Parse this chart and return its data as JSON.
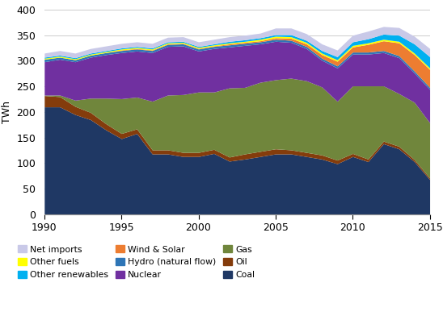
{
  "years": [
    1990,
    1991,
    1992,
    1993,
    1994,
    1995,
    1996,
    1997,
    1998,
    1999,
    2000,
    2001,
    2002,
    2003,
    2004,
    2005,
    2006,
    2007,
    2008,
    2009,
    2010,
    2011,
    2012,
    2013,
    2014,
    2015
  ],
  "Coal": [
    210,
    210,
    195,
    185,
    165,
    148,
    158,
    118,
    118,
    113,
    113,
    119,
    104,
    108,
    113,
    118,
    118,
    113,
    108,
    99,
    113,
    103,
    138,
    128,
    103,
    68
  ],
  "Oil": [
    22,
    20,
    16,
    14,
    12,
    10,
    9,
    8,
    8,
    8,
    8,
    8,
    8,
    10,
    10,
    10,
    8,
    8,
    8,
    7,
    6,
    5,
    5,
    5,
    4,
    3
  ],
  "Gas": [
    1,
    3,
    12,
    28,
    50,
    68,
    62,
    95,
    107,
    113,
    118,
    112,
    135,
    130,
    135,
    135,
    140,
    140,
    133,
    115,
    132,
    143,
    108,
    103,
    112,
    108
  ],
  "Nuclear": [
    65,
    70,
    75,
    80,
    85,
    90,
    90,
    95,
    95,
    95,
    80,
    85,
    80,
    82,
    75,
    75,
    70,
    63,
    52,
    65,
    62,
    62,
    65,
    70,
    57,
    65
  ],
  "Hydro": [
    5,
    4,
    4,
    4,
    4,
    4,
    4,
    4,
    4,
    4,
    4,
    4,
    4,
    4,
    4,
    4,
    4,
    4,
    4,
    4,
    4,
    4,
    4,
    4,
    4,
    4
  ],
  "Wind_Solar": [
    0,
    0,
    0,
    0,
    0,
    1,
    1,
    1,
    1,
    1,
    1,
    1,
    2,
    2,
    2,
    3,
    4,
    5,
    7,
    9,
    10,
    15,
    19,
    25,
    32,
    35
  ],
  "Other_fuels": [
    2,
    2,
    2,
    2,
    2,
    2,
    2,
    2,
    2,
    2,
    2,
    2,
    2,
    2,
    3,
    3,
    3,
    3,
    3,
    3,
    3,
    3,
    3,
    3,
    3,
    3
  ],
  "Other_renewables": [
    2,
    2,
    2,
    2,
    2,
    2,
    2,
    2,
    2,
    2,
    2,
    2,
    3,
    3,
    3,
    3,
    4,
    4,
    5,
    6,
    7,
    8,
    10,
    12,
    18,
    22
  ],
  "Net_imports": [
    8,
    9,
    9,
    9,
    9,
    9,
    9,
    9,
    9,
    9,
    9,
    9,
    9,
    9,
    9,
    13,
    13,
    13,
    13,
    13,
    13,
    15,
    15,
    15,
    15,
    16
  ],
  "colors": {
    "Coal": "#1f3864",
    "Oil": "#843c0c",
    "Gas": "#70863c",
    "Nuclear": "#7030a0",
    "Hydro": "#2e75b6",
    "Wind_Solar": "#ed7d31",
    "Other_fuels": "#ffff00",
    "Other_renewables": "#00b0f0",
    "Net_imports": "#c9c9e8"
  },
  "legend_labels": {
    "Net_imports": "Net imports",
    "Other_fuels": "Other fuels",
    "Other_renewables": "Other renewables",
    "Wind_Solar": "Wind & Solar",
    "Hydro": "Hydro (natural flow)",
    "Nuclear": "Nuclear",
    "Gas": "Gas",
    "Oil": "Oil",
    "Coal": "Coal"
  },
  "ylabel": "TWh",
  "ylim": [
    0,
    400
  ],
  "xlim": [
    1990,
    2015
  ],
  "yticks": [
    0,
    50,
    100,
    150,
    200,
    250,
    300,
    350,
    400
  ],
  "xticks": [
    1990,
    1995,
    2000,
    2005,
    2010,
    2015
  ],
  "grid_color": "#cccccc"
}
